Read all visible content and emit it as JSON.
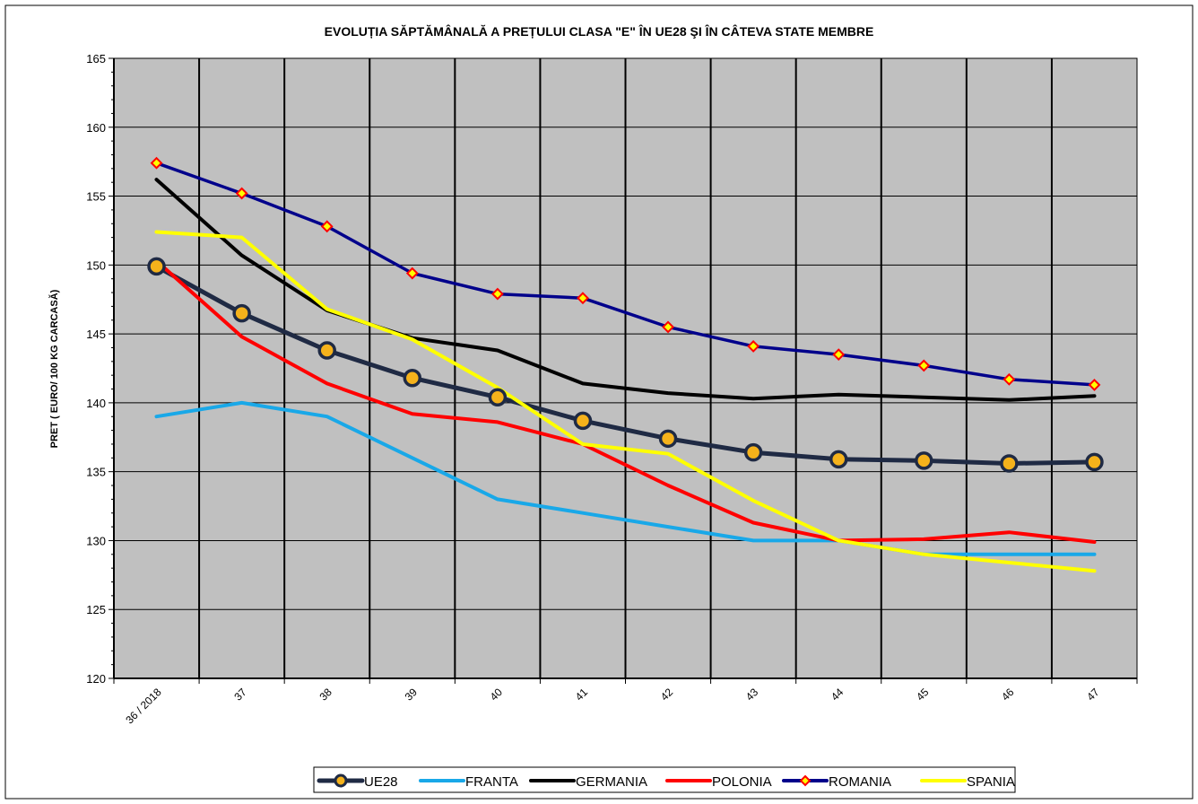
{
  "chart_data": {
    "type": "line",
    "title": "EVOLUȚIA SĂPTĂMÂNALĂ  A PREȚULUI CLASA \"E\"  ÎN  UE28 ŞI ÎN  CÂTEVA STATE MEMBRE",
    "ylabel": "PRET ( EURO/ 100 KG CARCASĂ)",
    "xlabel": "",
    "categories": [
      "36 / 2018",
      "37",
      "38",
      "39",
      "40",
      "41",
      "42",
      "43",
      "44",
      "45",
      "46",
      "47"
    ],
    "ylim": [
      120,
      165
    ],
    "yticks": [
      120,
      125,
      130,
      135,
      140,
      145,
      150,
      155,
      160,
      165
    ],
    "grid": true,
    "legend_position": "bottom",
    "plot_background": "#c0c0c0",
    "series": [
      {
        "name": "UE28",
        "color": "#1f2a44",
        "marker": "circle",
        "marker_fill": "#f5b21b",
        "values": [
          149.9,
          146.5,
          143.8,
          141.8,
          140.4,
          138.7,
          137.4,
          136.4,
          135.9,
          135.8,
          135.6,
          135.7
        ]
      },
      {
        "name": "FRANTA",
        "color": "#19a8e8",
        "marker": "none",
        "values": [
          139.0,
          140.0,
          139.0,
          136.0,
          133.0,
          132.0,
          131.0,
          130.0,
          130.0,
          129.0,
          129.0,
          129.0
        ]
      },
      {
        "name": "GERMANIA",
        "color": "#000000",
        "marker": "none",
        "values": [
          156.2,
          150.7,
          146.7,
          144.7,
          143.8,
          141.4,
          140.7,
          140.3,
          140.6,
          140.4,
          140.2,
          140.5
        ]
      },
      {
        "name": "POLONIA",
        "color": "#ff0000",
        "marker": "none",
        "values": [
          150.3,
          144.8,
          141.4,
          139.2,
          138.6,
          137.0,
          134.0,
          131.3,
          130.0,
          130.1,
          130.6,
          129.9
        ]
      },
      {
        "name": "ROMANIA",
        "color": "#00008b",
        "marker": "diamond",
        "marker_fill": "#ffff00",
        "marker_edge": "#ff0000",
        "values": [
          157.4,
          155.2,
          152.8,
          149.4,
          147.9,
          147.6,
          145.5,
          144.1,
          143.5,
          142.7,
          141.7,
          141.3
        ]
      },
      {
        "name": "SPANIA",
        "color": "#ffff00",
        "marker": "none",
        "values": [
          152.4,
          152.0,
          146.8,
          144.6,
          141.1,
          137.0,
          136.3,
          132.9,
          130.0,
          129.0,
          128.4,
          127.8
        ]
      }
    ]
  }
}
